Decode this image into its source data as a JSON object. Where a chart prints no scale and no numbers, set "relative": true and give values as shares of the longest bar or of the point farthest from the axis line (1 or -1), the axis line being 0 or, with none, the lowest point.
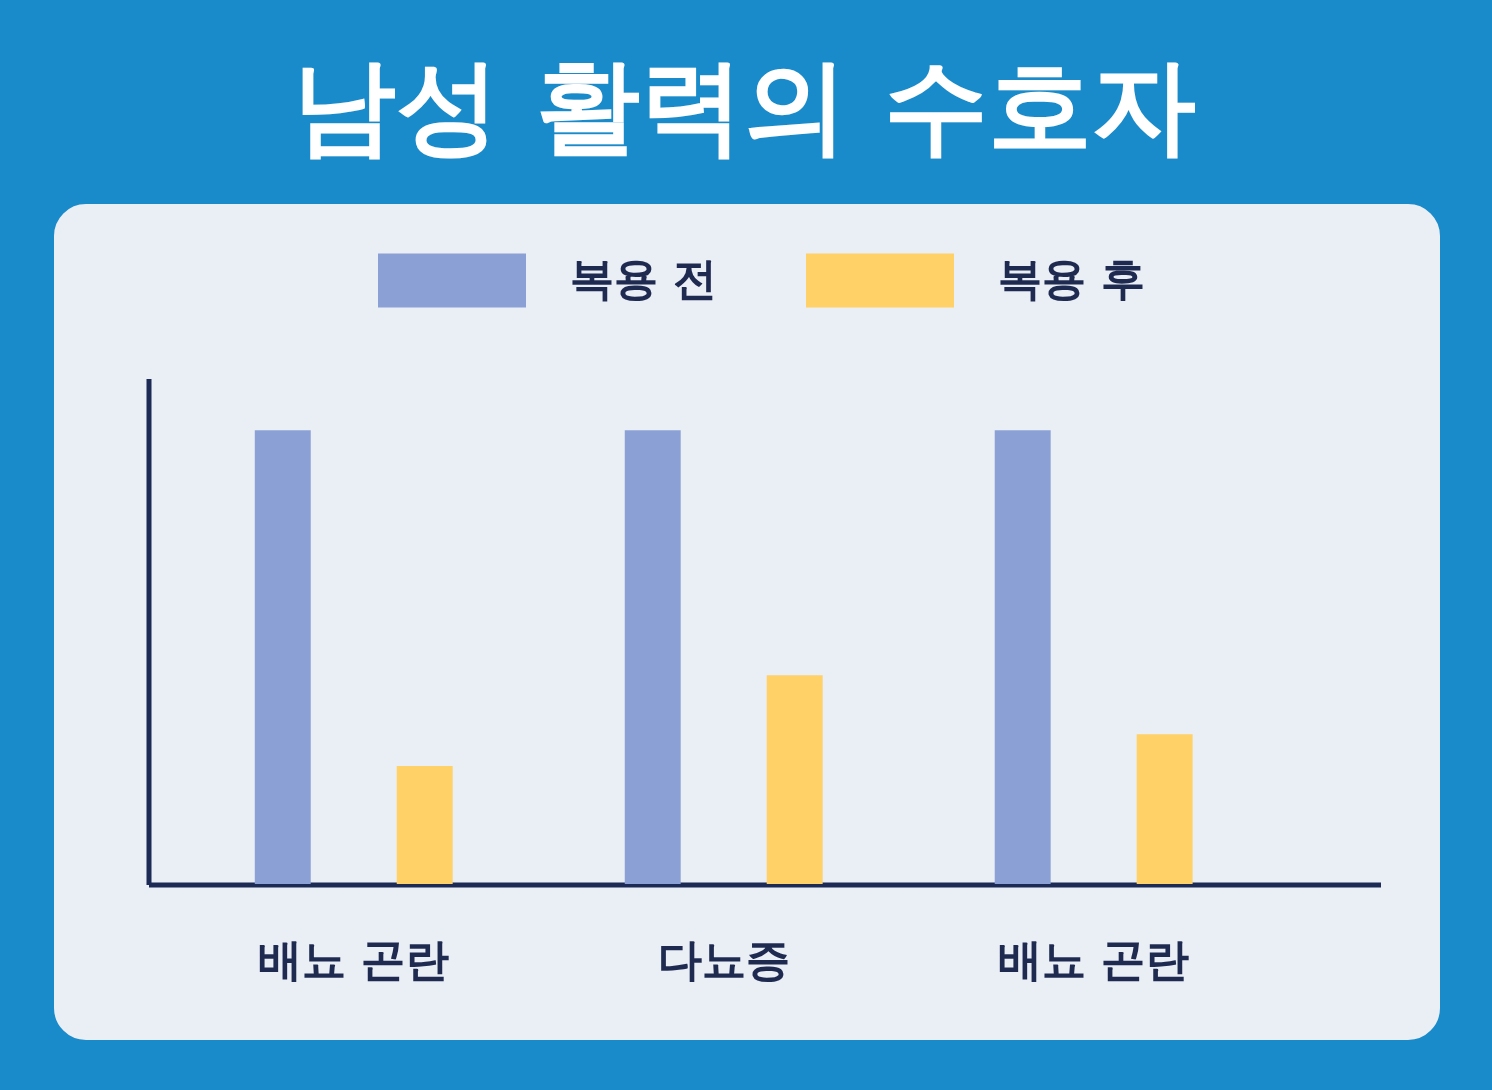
{
  "chart_data": {
    "type": "bar",
    "title": "남성 활력의 수호자",
    "categories": [
      "배뇨 곤란",
      "다뇨증",
      "배뇨 곤란"
    ],
    "series": [
      {
        "name": "복용 전",
        "color": "#8ba0d5",
        "values": [
          1,
          1,
          1
        ]
      },
      {
        "name": "복용 후",
        "color": "#ffd166",
        "values": [
          0.26,
          0.46,
          0.33
        ]
      }
    ],
    "relative": true,
    "legend": "top"
  }
}
